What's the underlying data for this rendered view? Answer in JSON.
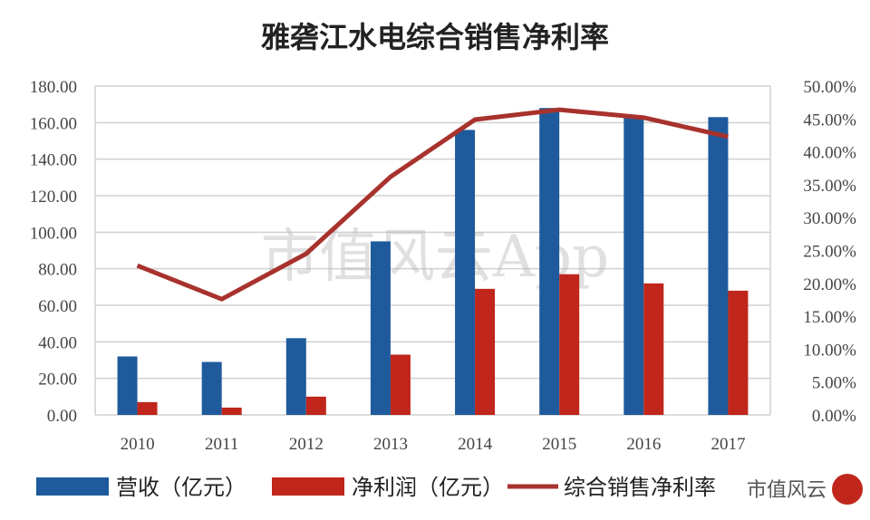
{
  "chart_data": {
    "type": "bar",
    "title": "雅砻江水电综合销售净利率",
    "categories": [
      "2010",
      "2011",
      "2012",
      "2013",
      "2014",
      "2015",
      "2016",
      "2017"
    ],
    "series": [
      {
        "name": "营收（亿元）",
        "kind": "bar",
        "axis": "left",
        "color": "#1f5b9c",
        "values": [
          32,
          29,
          42,
          95,
          156,
          168,
          163,
          163
        ]
      },
      {
        "name": "净利润（亿元）",
        "kind": "bar",
        "axis": "left",
        "color": "#c0261b",
        "values": [
          7,
          4,
          10,
          33,
          69,
          77,
          72,
          68
        ]
      },
      {
        "name": "综合销售净利率",
        "kind": "line",
        "axis": "right",
        "color": "#a8322d",
        "values": [
          22.7,
          17.6,
          24.5,
          36.2,
          44.9,
          46.4,
          45.2,
          42.3
        ]
      }
    ],
    "ylim": [
      0,
      180
    ],
    "y2lim": [
      0,
      50
    ],
    "yticks": [
      "0.00",
      "20.00",
      "40.00",
      "60.00",
      "80.00",
      "100.00",
      "120.00",
      "140.00",
      "160.00",
      "180.00"
    ],
    "y2ticks": [
      "0.00%",
      "5.00%",
      "10.00%",
      "15.00%",
      "20.00%",
      "25.00%",
      "30.00%",
      "35.00%",
      "40.00%",
      "45.00%",
      "50.00%"
    ],
    "grid": true,
    "legend": "bottom"
  },
  "watermark": "市值风云App",
  "logo": "市值风云"
}
